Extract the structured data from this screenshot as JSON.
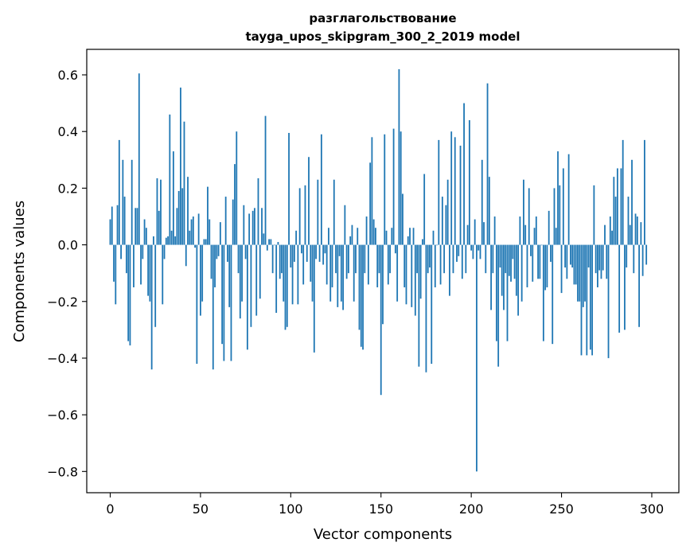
{
  "chart_data": {
    "type": "bar",
    "title_line1": "разглагольствование",
    "title_line2": "tayga_upos_skipgram_300_2_2019 model",
    "xlabel": "Vector components",
    "ylabel": "Components values",
    "xlim": [
      -13,
      315
    ],
    "ylim": [
      -0.875,
      0.69
    ],
    "xticks": [
      0,
      50,
      100,
      150,
      200,
      250,
      300
    ],
    "xtick_labels": [
      "0",
      "50",
      "100",
      "150",
      "200",
      "250",
      "300"
    ],
    "yticks": [
      -0.8,
      -0.6,
      -0.4,
      -0.2,
      0.0,
      0.2,
      0.4,
      0.6
    ],
    "ytick_labels": [
      "−0.8",
      "−0.6",
      "−0.4",
      "−0.2",
      "0.0",
      "0.2",
      "0.4",
      "0.6"
    ],
    "bar_color": "#1f77b4",
    "values": [
      0.09,
      0.135,
      -0.13,
      -0.21,
      0.14,
      0.37,
      -0.05,
      0.3,
      0.17,
      -0.1,
      -0.34,
      -0.355,
      0.3,
      -0.15,
      0.13,
      0.13,
      0.605,
      -0.14,
      -0.05,
      0.09,
      0.06,
      -0.18,
      -0.2,
      -0.44,
      0.03,
      -0.29,
      0.235,
      0.12,
      0.23,
      -0.21,
      -0.05,
      0.025,
      0.03,
      0.46,
      0.05,
      0.33,
      0.03,
      0.13,
      0.19,
      0.555,
      0.2,
      0.435,
      -0.075,
      0.24,
      0.05,
      0.09,
      0.1,
      -0.01,
      -0.42,
      0.11,
      -0.25,
      -0.2,
      0.02,
      0.02,
      0.205,
      0.09,
      -0.12,
      -0.44,
      -0.15,
      -0.05,
      -0.04,
      0.08,
      -0.35,
      -0.41,
      0.17,
      -0.06,
      -0.22,
      -0.41,
      0.16,
      0.285,
      0.4,
      -0.1,
      -0.26,
      -0.2,
      0.14,
      -0.05,
      -0.37,
      0.11,
      -0.29,
      0.12,
      0.13,
      -0.25,
      0.235,
      -0.19,
      0.13,
      0.04,
      0.455,
      -0.02,
      0.02,
      0.02,
      -0.1,
      0.0,
      -0.24,
      0.01,
      -0.12,
      -0.1,
      -0.2,
      -0.3,
      -0.29,
      0.395,
      -0.08,
      -0.21,
      -0.06,
      0.05,
      -0.21,
      0.2,
      -0.03,
      -0.14,
      0.21,
      -0.06,
      0.31,
      -0.13,
      -0.2,
      -0.38,
      -0.05,
      0.23,
      -0.06,
      0.39,
      -0.07,
      -0.03,
      -0.14,
      0.06,
      -0.2,
      -0.15,
      0.23,
      -0.1,
      -0.22,
      -0.04,
      -0.2,
      -0.23,
      0.14,
      -0.12,
      -0.1,
      0.03,
      0.07,
      -0.2,
      -0.1,
      0.06,
      -0.3,
      -0.36,
      -0.37,
      -0.1,
      0.1,
      -0.14,
      0.29,
      0.38,
      0.09,
      0.06,
      -0.15,
      -0.1,
      -0.53,
      -0.28,
      0.39,
      0.05,
      -0.14,
      -0.1,
      0.06,
      0.41,
      -0.03,
      -0.2,
      0.62,
      0.4,
      0.18,
      -0.15,
      -0.21,
      0.03,
      0.06,
      -0.22,
      0.06,
      -0.25,
      -0.1,
      -0.43,
      -0.19,
      0.02,
      0.25,
      -0.45,
      -0.1,
      -0.08,
      -0.42,
      0.05,
      -0.15,
      0.0,
      0.37,
      -0.14,
      0.17,
      -0.1,
      0.14,
      0.23,
      -0.18,
      0.4,
      -0.1,
      0.38,
      -0.06,
      -0.04,
      0.35,
      -0.12,
      0.5,
      -0.1,
      0.07,
      0.44,
      -0.02,
      -0.05,
      0.09,
      -0.8,
      -0.02,
      -0.05,
      0.3,
      0.08,
      -0.1,
      0.57,
      0.24,
      -0.23,
      -0.1,
      0.1,
      -0.34,
      -0.43,
      -0.08,
      -0.18,
      -0.23,
      -0.1,
      -0.34,
      -0.11,
      -0.13,
      -0.05,
      -0.12,
      -0.18,
      -0.25,
      0.1,
      -0.2,
      0.23,
      0.07,
      -0.15,
      0.2,
      -0.04,
      -0.13,
      0.06,
      0.1,
      -0.12,
      -0.12,
      0.0,
      -0.34,
      -0.16,
      -0.15,
      0.12,
      -0.06,
      -0.35,
      0.2,
      0.06,
      0.33,
      0.21,
      -0.17,
      0.27,
      -0.08,
      -0.12,
      0.32,
      -0.07,
      -0.08,
      -0.14,
      -0.14,
      -0.2,
      -0.2,
      -0.39,
      -0.22,
      -0.2,
      -0.39,
      -0.08,
      -0.37,
      -0.39,
      0.21,
      -0.1,
      -0.15,
      -0.09,
      -0.12,
      -0.09,
      0.07,
      -0.12,
      -0.4,
      0.1,
      0.05,
      0.24,
      0.17,
      0.27,
      -0.31,
      0.27,
      0.37,
      -0.3,
      -0.08,
      0.17,
      0.07,
      0.3,
      -0.1,
      0.11,
      0.1,
      -0.29,
      0.08,
      -0.11,
      0.37,
      -0.07
    ]
  }
}
